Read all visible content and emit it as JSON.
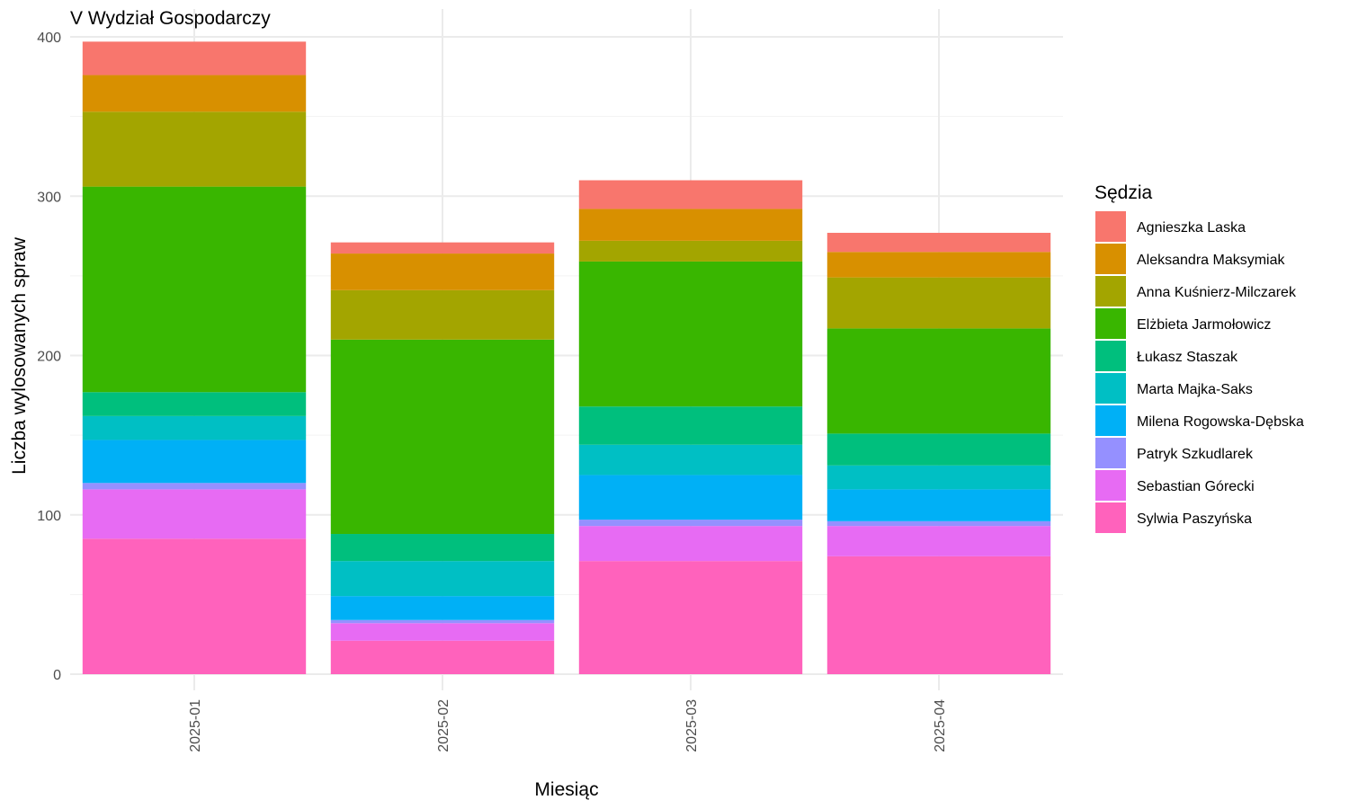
{
  "chart_data": {
    "type": "bar",
    "stacked": true,
    "title": "V Wydział Gospodarczy",
    "xlabel": "Miesiąc",
    "ylabel": "Liczba wylosowanych spraw",
    "ylim": [
      0,
      410
    ],
    "yticks": [
      0,
      100,
      200,
      300,
      400
    ],
    "grid": true,
    "legend": {
      "title": "Sędzia",
      "placement": "right"
    },
    "categories": [
      "2025-01",
      "2025-02",
      "2025-03",
      "2025-04"
    ],
    "series": [
      {
        "name": "Agnieszka Laska",
        "color": "#F8766D",
        "values": [
          21,
          7,
          18,
          12
        ]
      },
      {
        "name": "Aleksandra Maksymiak",
        "color": "#D89000",
        "values": [
          23,
          23,
          20,
          16
        ]
      },
      {
        "name": "Anna Kuśnierz-Milczarek",
        "color": "#A3A500",
        "values": [
          47,
          31,
          13,
          32
        ]
      },
      {
        "name": "Elżbieta Jarmołowicz",
        "color": "#39B600",
        "values": [
          129,
          122,
          91,
          66
        ]
      },
      {
        "name": "Łukasz Staszak",
        "color": "#00BF7D",
        "values": [
          15,
          17,
          24,
          20
        ]
      },
      {
        "name": "Marta Majka-Saks",
        "color": "#00BFC4",
        "values": [
          15,
          22,
          19,
          15
        ]
      },
      {
        "name": "Milena Rogowska-Dębska",
        "color": "#00B0F6",
        "values": [
          27,
          15,
          28,
          20
        ]
      },
      {
        "name": "Patryk Szkudlarek",
        "color": "#9590FF",
        "values": [
          4,
          2,
          4,
          3
        ]
      },
      {
        "name": "Sebastian Górecki",
        "color": "#E76BF3",
        "values": [
          31,
          11,
          22,
          19
        ]
      },
      {
        "name": "Sylwia Paszyńska",
        "color": "#FF62BC",
        "values": [
          85,
          21,
          71,
          74
        ]
      }
    ]
  }
}
